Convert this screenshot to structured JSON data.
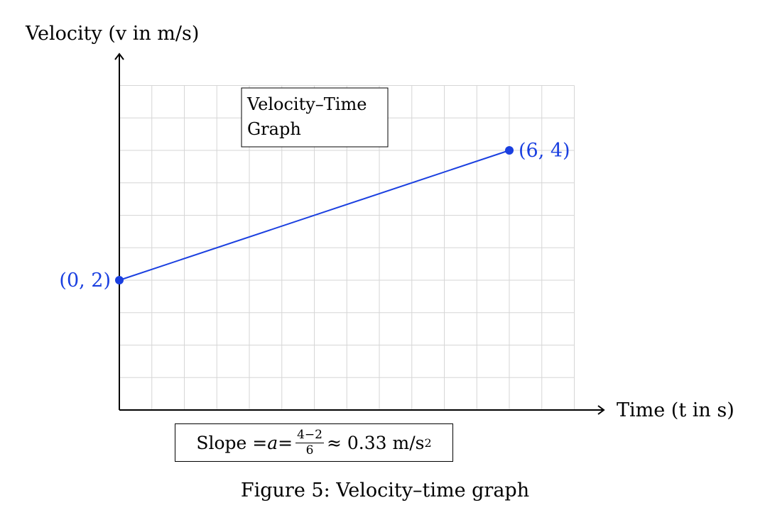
{
  "chart_data": {
    "type": "line",
    "title_box": [
      "Velocity–Time",
      "Graph"
    ],
    "xlabel": "Time (t in s)",
    "ylabel": "Velocity (v in m/s)",
    "xlim": [
      0,
      7
    ],
    "ylim": [
      0,
      5
    ],
    "grid": true,
    "series": [
      {
        "color": "#1a3fe0",
        "x": [
          0,
          6
        ],
        "y": [
          2,
          4
        ]
      }
    ],
    "points": [
      {
        "x": 0,
        "y": 2,
        "label": "(0, 2)",
        "label_side": "left"
      },
      {
        "x": 6,
        "y": 4,
        "label": "(6, 4)",
        "label_side": "right"
      }
    ],
    "annotation": {
      "prefix": "Slope = ",
      "var": "a",
      "equals": " = ",
      "frac_num": "4−2",
      "frac_den": "6",
      "suffix": " ≈ 0.33 m/s",
      "exponent": "2"
    },
    "caption": "Figure 5: Velocity–time graph"
  }
}
